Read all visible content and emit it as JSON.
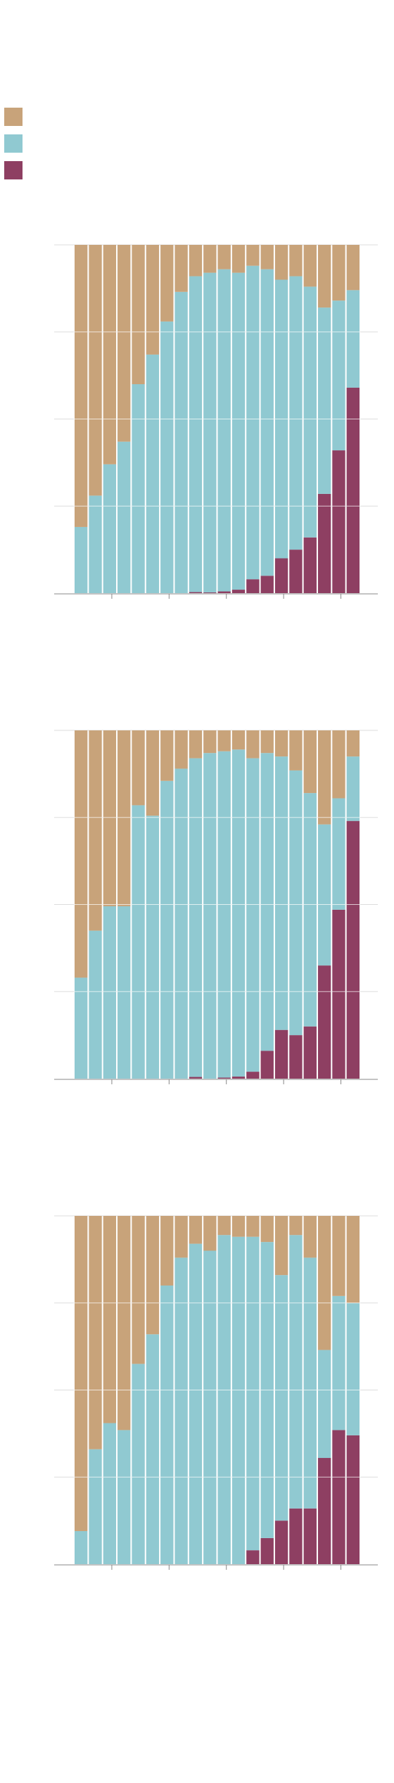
{
  "chart_data": [
    {
      "type": "stacked-bar",
      "legend": "top-left",
      "grid": true,
      "ylim": [
        0,
        100
      ],
      "yticks": [
        0,
        25,
        50,
        75,
        100
      ],
      "categories": [
        null,
        null,
        null,
        null,
        null,
        null,
        null,
        null,
        null,
        null,
        null,
        null,
        null,
        null,
        null,
        null,
        null,
        null,
        null,
        null
      ],
      "series": [
        {
          "color": "#8e3f62",
          "values": [
            0,
            0,
            0,
            0,
            0,
            0,
            0,
            0,
            0.3,
            0.2,
            0.5,
            1,
            4,
            5,
            10,
            12.5,
            16,
            28.5,
            41,
            59
          ]
        },
        {
          "color": "#90c9d1",
          "values": [
            19,
            28,
            37,
            43.5,
            60,
            68.5,
            78,
            86.5,
            90.7,
            91.8,
            92.5,
            91,
            90,
            88,
            80,
            78.5,
            72,
            53.5,
            43,
            28
          ]
        },
        {
          "color": "#c8a37a",
          "values": [
            81,
            72,
            63,
            56.5,
            40,
            31.5,
            22,
            13.5,
            9,
            8,
            7,
            8,
            6,
            7,
            10,
            9,
            12,
            18,
            16,
            13
          ]
        }
      ]
    },
    {
      "type": "stacked-bar",
      "grid": true,
      "ylim": [
        0,
        100
      ],
      "yticks": [
        0,
        25,
        50,
        75,
        100
      ],
      "categories": [
        null,
        null,
        null,
        null,
        null,
        null,
        null,
        null,
        null,
        null,
        null,
        null,
        null,
        null,
        null,
        null,
        null,
        null,
        null,
        null
      ],
      "series": [
        {
          "color": "#8e3f62",
          "values": [
            0,
            0,
            0,
            0,
            0,
            0,
            0,
            0,
            0.5,
            0,
            0.3,
            0.6,
            2,
            8,
            14,
            12.5,
            15,
            32.5,
            48.5,
            74
          ]
        },
        {
          "color": "#90c9d1",
          "values": [
            29,
            42.5,
            49.5,
            49.5,
            78.5,
            75.5,
            85.5,
            89,
            91.5,
            93.5,
            93.7,
            93.9,
            90,
            85.5,
            78.5,
            76,
            67,
            40.5,
            32,
            18.5
          ]
        },
        {
          "color": "#c8a37a",
          "values": [
            71,
            57.5,
            50.5,
            50.5,
            21.5,
            24.5,
            14.5,
            11,
            8,
            6.5,
            6,
            5.5,
            8,
            6.5,
            7.5,
            11.5,
            18,
            27,
            19.5,
            7.5
          ]
        }
      ]
    },
    {
      "type": "stacked-bar",
      "grid": true,
      "ylim": [
        0,
        100
      ],
      "yticks": [
        0,
        25,
        50,
        75,
        100
      ],
      "categories": [
        null,
        null,
        null,
        null,
        null,
        null,
        null,
        null,
        null,
        null,
        null,
        null,
        null,
        null,
        null,
        null,
        null,
        null,
        null,
        null
      ],
      "series": [
        {
          "color": "#8e3f62",
          "values": [
            0,
            0,
            0,
            0,
            0,
            0,
            0,
            0,
            0,
            0,
            0,
            0,
            4,
            7.5,
            12.5,
            16,
            16,
            30.5,
            38.5,
            37
          ]
        },
        {
          "color": "#90c9d1",
          "values": [
            9.5,
            33,
            40.5,
            38.5,
            57.5,
            66,
            80,
            88,
            92,
            90,
            94.5,
            94,
            90,
            85,
            70.5,
            78.5,
            72,
            31,
            38.5,
            38
          ]
        },
        {
          "color": "#c8a37a",
          "values": [
            90.5,
            67,
            59.5,
            61.5,
            42.5,
            34,
            20,
            12,
            8,
            10,
            5.5,
            6,
            6,
            7.5,
            17,
            5.5,
            12,
            38.5,
            23,
            25
          ]
        }
      ]
    }
  ]
}
